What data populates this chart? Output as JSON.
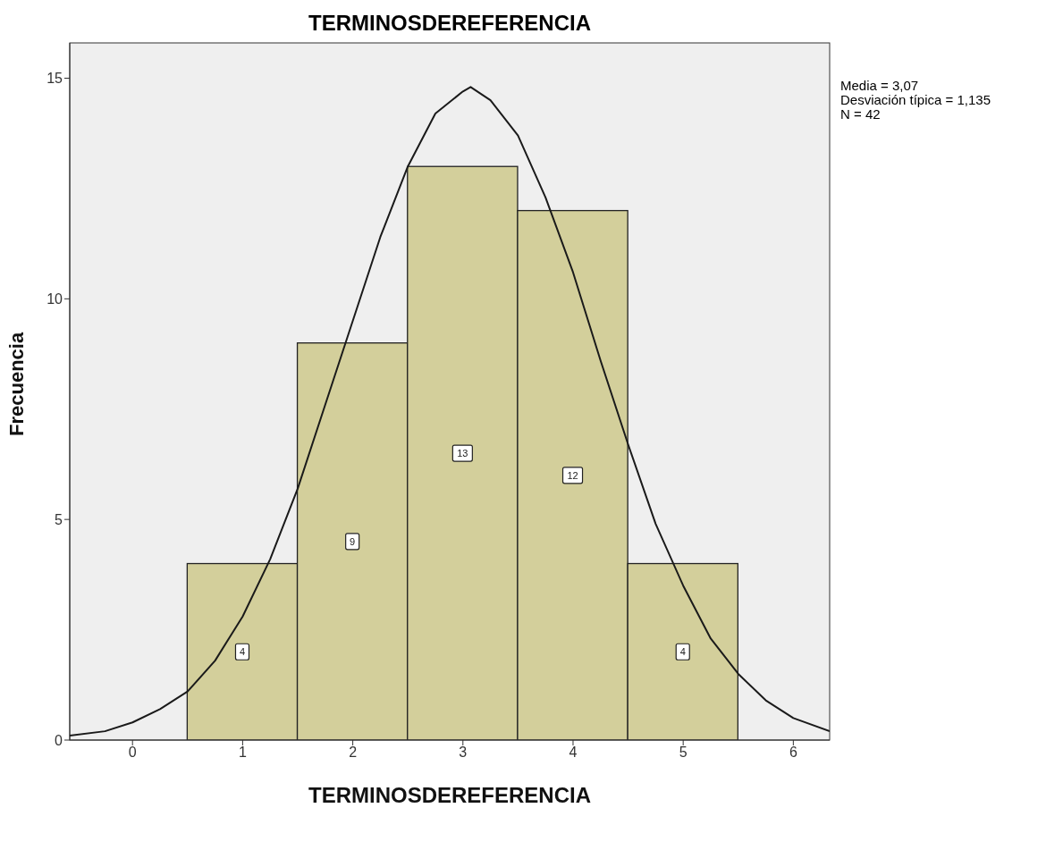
{
  "chart_data": {
    "type": "histogram",
    "title": "TERMINOSDEREFERENCIA",
    "xlabel": "TERMINOSDEREFERENCIA",
    "ylabel": "Frecuencia",
    "annotations": [
      "Media = 3,07",
      "Desviación típica = 1,135",
      "N = 42"
    ],
    "bins": [
      0.5,
      1.5,
      2.5,
      3.5,
      4.5,
      5.5
    ],
    "values": [
      4,
      9,
      13,
      12,
      4
    ],
    "color": "#d3cf9b",
    "value_labels": [
      "4",
      "9",
      "13",
      "12",
      "4"
    ],
    "xlim": [
      -0.57,
      6.33
    ],
    "ylim": [
      0,
      15.8
    ],
    "xticks": [
      0,
      1,
      2,
      3,
      4,
      5,
      6
    ],
    "yticks": [
      0,
      5,
      10,
      15
    ],
    "series": [
      {
        "type": "line",
        "color": "#1a1a1a",
        "x": [
          -0.57,
          -0.25,
          0,
          0.25,
          0.5,
          0.75,
          1,
          1.25,
          1.5,
          1.75,
          2,
          2.25,
          2.5,
          2.75,
          3,
          3.07,
          3.25,
          3.5,
          3.75,
          4,
          4.25,
          4.5,
          4.75,
          5,
          5.25,
          5.5,
          5.75,
          6,
          6.33
        ],
        "values": [
          0.1,
          0.2,
          0.4,
          0.7,
          1.1,
          1.8,
          2.8,
          4.1,
          5.7,
          7.6,
          9.5,
          11.4,
          13.0,
          14.2,
          14.7,
          14.8,
          14.5,
          13.7,
          12.3,
          10.6,
          8.6,
          6.7,
          4.9,
          3.5,
          2.3,
          1.5,
          0.9,
          0.5,
          0.2
        ]
      }
    ]
  }
}
